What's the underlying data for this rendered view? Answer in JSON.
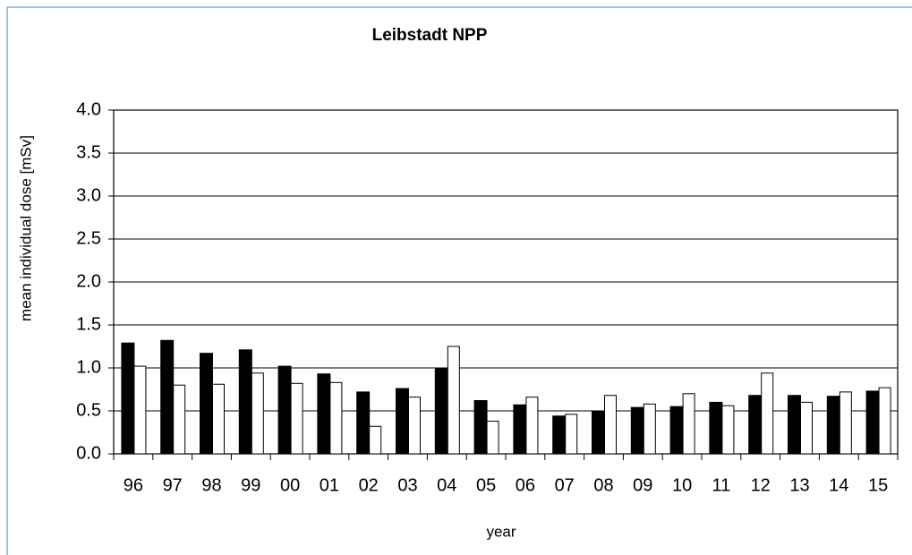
{
  "chart_data": {
    "type": "bar",
    "title": "Leibstadt NPP",
    "xlabel": "year",
    "ylabel": "mean individual dose [mSv]",
    "categories": [
      "96",
      "97",
      "98",
      "99",
      "00",
      "01",
      "02",
      "03",
      "04",
      "05",
      "06",
      "07",
      "08",
      "09",
      "10",
      "11",
      "12",
      "13",
      "14",
      "15"
    ],
    "series": [
      {
        "color": "#000000",
        "values": [
          1.29,
          1.32,
          1.17,
          1.21,
          1.02,
          0.93,
          0.72,
          0.76,
          0.99,
          0.62,
          0.57,
          0.44,
          0.49,
          0.54,
          0.55,
          0.6,
          0.68,
          0.68,
          0.67,
          0.73
        ]
      },
      {
        "color": "#ffffff",
        "values": [
          1.02,
          0.8,
          0.81,
          0.94,
          0.82,
          0.83,
          0.32,
          0.66,
          1.25,
          0.38,
          0.66,
          0.46,
          0.68,
          0.58,
          0.7,
          0.56,
          0.94,
          0.6,
          0.72,
          0.77
        ]
      }
    ],
    "ylim": [
      0,
      4
    ],
    "yticks": [
      {
        "value": 0,
        "label": "0.0"
      },
      0.5,
      {
        "value": 1,
        "label": "1.0"
      },
      1.5,
      {
        "value": 2,
        "label": "2.0"
      },
      2.5,
      {
        "value": 3,
        "label": "3.0"
      },
      3.5,
      {
        "value": 4,
        "label": "4.0"
      }
    ],
    "grid": true
  }
}
